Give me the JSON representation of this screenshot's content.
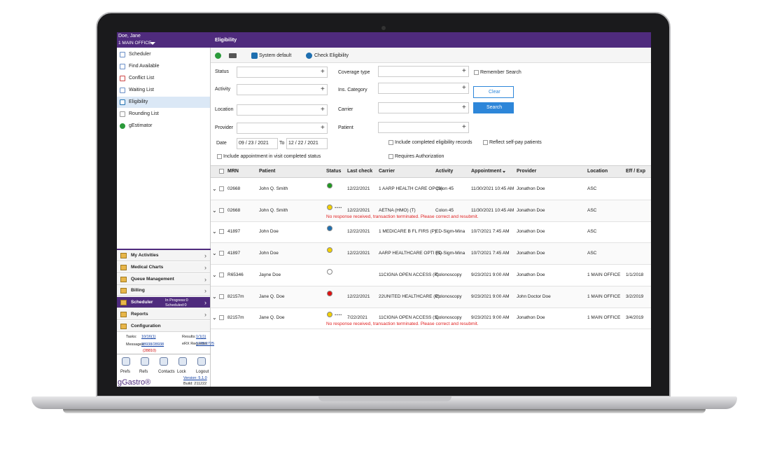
{
  "user": {
    "name": "Doe, Jane",
    "office": "1 MAIN OFFICE"
  },
  "page_title": "Eligibility",
  "nav": [
    "Scheduler",
    "Find Available",
    "Conflict List",
    "Waiting List",
    "Eligibility",
    "Rounding List",
    "gEstimator"
  ],
  "selected_nav": 4,
  "modules": [
    {
      "label": "My Activities"
    },
    {
      "label": "Medical Charts"
    },
    {
      "label": "Queue Management"
    },
    {
      "label": "Billing"
    },
    {
      "label": "Scheduler",
      "status": [
        "In Progress:0",
        "Scheduled:0"
      ]
    },
    {
      "label": "Reports"
    },
    {
      "label": "Configuration"
    }
  ],
  "selected_module": 4,
  "stats": [
    {
      "label": "Tasks:",
      "value": "10/16(1)"
    },
    {
      "label": "Results:",
      "value": "1/1(1)"
    },
    {
      "label": "Messages:",
      "value": "28938/28938",
      "extra": "(28810)"
    },
    {
      "label": "eRX Requests:",
      "value": "1725/1725"
    }
  ],
  "tools": [
    "Prefs",
    "Refs",
    "Contacts",
    "Lock",
    "Logout"
  ],
  "brand": "gGastro®",
  "version": "Version: 5.1.0",
  "build": "Build: 211222",
  "toolbar": {
    "preset": "System default",
    "check": "Check Eligibility"
  },
  "filters": {
    "left": [
      "Status",
      "Activity",
      "Location",
      "Provider"
    ],
    "right": [
      "Coverage type",
      "Ins. Category",
      "Carrier",
      "Patient"
    ],
    "date_label": "Date",
    "date_from": "09 / 23 / 2021",
    "to": "To",
    "date_to": "12 / 22 / 2021",
    "remember": "Remember Search",
    "clear": "Clear",
    "search": "Search",
    "checkboxes": [
      "Include appointment in visit completed status",
      "Include completed eligibility records",
      "Reflect self-pay patients",
      "Requires Authorization"
    ]
  },
  "table": {
    "columns": [
      "MRN",
      "Patient",
      "Status",
      "Last check",
      "Carrier",
      "Activity",
      "Appointment",
      "Provider",
      "Location",
      "Eff / Exp"
    ],
    "sort_column": 6,
    "rows": [
      {
        "mrn": "02668",
        "patient": "John Q. Smith",
        "status_color": "#1f9a1f",
        "last_check": "12/22/2021",
        "carrier": "1 AARP HEALTH CARE OP (S)",
        "activity": "Colon 45",
        "appointment": "11/30/2021 10:45 AM",
        "provider": "Jonathon Doe",
        "location": "ASC"
      },
      {
        "mrn": "02668",
        "patient": "John Q. Smith",
        "status_color": "#f2d000",
        "last_check": "12/22/2021",
        "carrier": "AETNA (HMO) (T)",
        "activity": "Colon 45",
        "appointment": "11/30/2021 10:45 AM",
        "provider": "Jonathon Doe",
        "location": "ASC",
        "message": "No response received, transaction terminated. Please correct and resubmit."
      },
      {
        "mrn": "41897",
        "patient": "John Doe",
        "status_color": "#1e6fb0",
        "last_check": "12/22/2021",
        "carrier": "1 MEDICARE B FL FIRS (P)",
        "activity": "ED-Sigm-Mina",
        "appointment": "10/7/2021 7:45 AM",
        "provider": "Jonathon Doe",
        "location": "ASC"
      },
      {
        "mrn": "41897",
        "patient": "John Doe",
        "status_color": "#f2d000",
        "last_check": "12/22/2021",
        "carrier": "AARP HEALTHCARE OPTI (S)",
        "activity": "ED-Sigm-Mina",
        "appointment": "10/7/2021 7:45 AM",
        "provider": "Jonathon Doe",
        "location": "ASC"
      },
      {
        "mrn": "R65346",
        "patient": "Jayne Doe",
        "status_color": "#ffffff",
        "carrier": "11CIGNA OPEN ACCESS (P)",
        "activity": "Colonoscopy",
        "appointment": "9/23/2021 9:00 AM",
        "provider": "Jonathon Doe",
        "location": "1 MAIN OFFICE",
        "eff_exp": "1/1/2018"
      },
      {
        "mrn": "82157m",
        "patient": "Jane Q. Doe",
        "status_color": "#e01010",
        "last_check": "12/22/2021",
        "carrier": "22UNITED HEALTHCARE (P)",
        "activity": "Colonoscopy",
        "appointment": "9/23/2021 9:00 AM",
        "provider": "John Doctor Doe",
        "location": "1 MAIN OFFICE",
        "eff_exp": "3/2/2019"
      },
      {
        "mrn": "82157m",
        "patient": "Jane Q. Doe",
        "status_color": "#f2d000",
        "last_check": "7/22/2021",
        "carrier": "11CIGNA OPEN ACCESS (S)",
        "activity": "Colonoscopy",
        "appointment": "9/23/2021 9:00 AM",
        "provider": "Jonathon Doe",
        "location": "1 MAIN OFFICE",
        "eff_exp": "3/4/2019",
        "message": "No response received, transaction terminated. Please correct and resubmit."
      }
    ]
  }
}
